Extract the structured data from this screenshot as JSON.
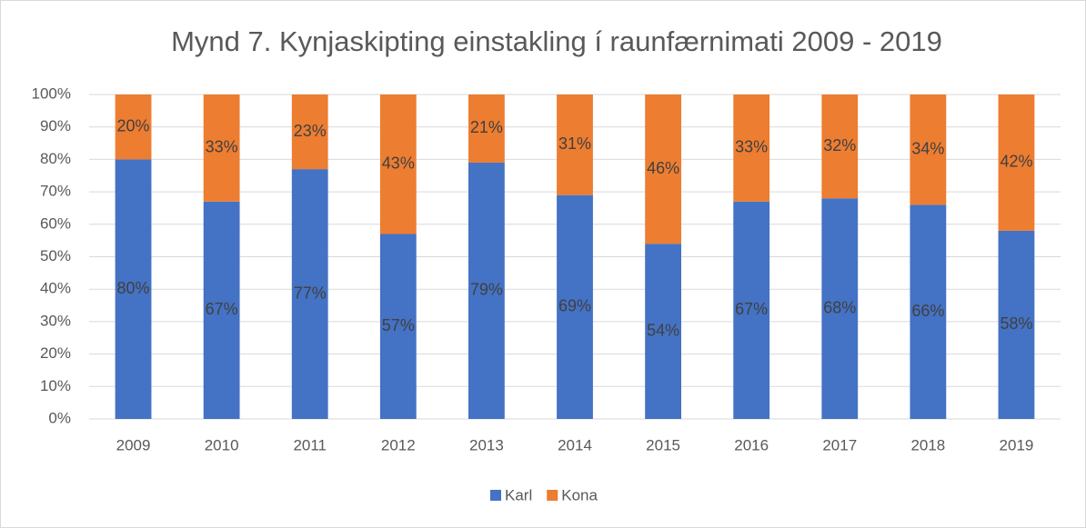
{
  "chart_data": {
    "type": "bar",
    "stacked": true,
    "title": "Mynd 7. Kynjaskipting einstakling í raunfærnimati 2009 - 2019",
    "categories": [
      "2009",
      "2010",
      "2011",
      "2012",
      "2013",
      "2014",
      "2015",
      "2016",
      "2017",
      "2018",
      "2019"
    ],
    "series": [
      {
        "name": "Karl",
        "color": "#4472c4",
        "values": [
          80,
          67,
          77,
          57,
          79,
          69,
          54,
          67,
          68,
          66,
          58
        ],
        "value_labels": [
          "80%",
          "67%",
          "77%",
          "57%",
          "79%",
          "69%",
          "54%",
          "67%",
          "68%",
          "66%",
          "58%"
        ]
      },
      {
        "name": "Kona",
        "color": "#ed7d31",
        "values": [
          20,
          33,
          23,
          43,
          21,
          31,
          46,
          33,
          32,
          34,
          42
        ],
        "value_labels": [
          "20%",
          "33%",
          "23%",
          "43%",
          "21%",
          "31%",
          "46%",
          "33%",
          "32%",
          "34%",
          "42%"
        ]
      }
    ],
    "ylim": [
      0,
      100
    ],
    "yticks": [
      {
        "value": 0,
        "label": "0%"
      },
      {
        "value": 10,
        "label": "10%"
      },
      {
        "value": 20,
        "label": "20%"
      },
      {
        "value": 30,
        "label": "30%"
      },
      {
        "value": 40,
        "label": "40%"
      },
      {
        "value": 50,
        "label": "50%"
      },
      {
        "value": 60,
        "label": "60%"
      },
      {
        "value": 70,
        "label": "70%"
      },
      {
        "value": 80,
        "label": "80%"
      },
      {
        "value": 90,
        "label": "90%"
      },
      {
        "value": 100,
        "label": "100%"
      }
    ],
    "grid": true,
    "legend": "bottom"
  }
}
